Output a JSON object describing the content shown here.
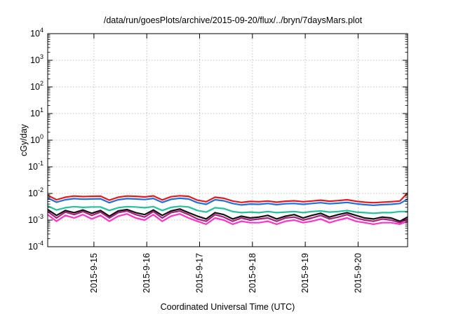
{
  "chart_data": {
    "type": "line",
    "title": "/data/run/goesPlots/archive/2015-09-20/flux/../bryn/7daysMars.plot",
    "xlabel": "Coordinated Universal Time (UTC)",
    "ylabel": "cGy/day",
    "yscale": "log",
    "ylim": [
      0.0001,
      10000
    ],
    "xlim": [
      "2015-09-14 03:00",
      "2015-09-20 22:30"
    ],
    "grid": true,
    "y_ticks": [
      {
        "base": "10",
        "exp": "4"
      },
      {
        "base": "10",
        "exp": "3"
      },
      {
        "base": "10",
        "exp": "2"
      },
      {
        "base": "10",
        "exp": "1"
      },
      {
        "base": "10",
        "exp": "0"
      },
      {
        "base": "10",
        "exp": "-1"
      },
      {
        "base": "10",
        "exp": "-2"
      },
      {
        "base": "10",
        "exp": "-3"
      },
      {
        "base": "10",
        "exp": "-4"
      }
    ],
    "x_ticks": [
      "2015-9-15",
      "2015-9-16",
      "2015-9-17",
      "2015-9-18",
      "2015-9-19",
      "2015-9-20"
    ],
    "x": [
      "2015-09-14 03:00",
      "2015-09-14 07:00",
      "2015-09-14 11:00",
      "2015-09-14 15:00",
      "2015-09-14 19:00",
      "2015-09-14 23:00",
      "2015-09-15 03:00",
      "2015-09-15 07:00",
      "2015-09-15 11:00",
      "2015-09-15 15:00",
      "2015-09-15 19:00",
      "2015-09-15 23:00",
      "2015-09-16 03:00",
      "2015-09-16 07:00",
      "2015-09-16 11:00",
      "2015-09-16 15:00",
      "2015-09-16 19:00",
      "2015-09-16 23:00",
      "2015-09-17 03:00",
      "2015-09-17 07:00",
      "2015-09-17 11:00",
      "2015-09-17 15:00",
      "2015-09-17 19:00",
      "2015-09-17 23:00",
      "2015-09-18 03:00",
      "2015-09-18 07:00",
      "2015-09-18 11:00",
      "2015-09-18 15:00",
      "2015-09-18 19:00",
      "2015-09-18 23:00",
      "2015-09-19 03:00",
      "2015-09-19 07:00",
      "2015-09-19 11:00",
      "2015-09-19 15:00",
      "2015-09-19 19:00",
      "2015-09-19 23:00",
      "2015-09-20 03:00",
      "2015-09-20 07:00",
      "2015-09-20 11:00",
      "2015-09-20 15:00",
      "2015-09-20 19:00",
      "2015-09-20 22:30"
    ],
    "series": [
      {
        "color": "#e41a1c",
        "values": [
          0.0085,
          0.0058,
          0.0072,
          0.008,
          0.0076,
          0.0078,
          0.0079,
          0.0056,
          0.0072,
          0.008,
          0.0078,
          0.0074,
          0.0081,
          0.0057,
          0.0075,
          0.0082,
          0.0078,
          0.0056,
          0.0049,
          0.0072,
          0.0066,
          0.0052,
          0.0046,
          0.005,
          0.0049,
          0.0052,
          0.0047,
          0.0051,
          0.0053,
          0.0049,
          0.0052,
          0.0056,
          0.0051,
          0.0054,
          0.0058,
          0.0051,
          0.0047,
          0.0045,
          0.0047,
          0.0049,
          0.0052,
          0.0105
        ]
      },
      {
        "color": "#1f6fe0",
        "values": [
          0.0068,
          0.0047,
          0.0058,
          0.0064,
          0.0061,
          0.0062,
          0.0063,
          0.0045,
          0.0058,
          0.0064,
          0.0062,
          0.0059,
          0.0065,
          0.0046,
          0.006,
          0.0066,
          0.0062,
          0.0045,
          0.0039,
          0.0058,
          0.0053,
          0.0042,
          0.0037,
          0.004,
          0.0039,
          0.0042,
          0.0038,
          0.0041,
          0.0042,
          0.0039,
          0.0042,
          0.0045,
          0.0041,
          0.0043,
          0.0046,
          0.0041,
          0.0038,
          0.0036,
          0.0038,
          0.0039,
          0.0042,
          0.0061
        ]
      },
      {
        "color": "#1fc49a",
        "values": [
          0.0034,
          0.0024,
          0.0029,
          0.0032,
          0.003,
          0.0031,
          0.0031,
          0.0023,
          0.0029,
          0.0032,
          0.0031,
          0.0029,
          0.0032,
          0.0023,
          0.003,
          0.0033,
          0.0031,
          0.0023,
          0.002,
          0.0029,
          0.0027,
          0.0021,
          0.0019,
          0.002,
          0.0019,
          0.0021,
          0.0019,
          0.002,
          0.0021,
          0.0019,
          0.0021,
          0.0022,
          0.002,
          0.0021,
          0.0023,
          0.002,
          0.0019,
          0.0018,
          0.0019,
          0.0019,
          0.0021,
          0.0021
        ]
      },
      {
        "color": "#111111",
        "values": [
          0.0025,
          0.0015,
          0.0023,
          0.0019,
          0.0024,
          0.0018,
          0.0023,
          0.0014,
          0.0022,
          0.0025,
          0.0019,
          0.0016,
          0.0024,
          0.0015,
          0.0022,
          0.0026,
          0.0019,
          0.0014,
          0.0011,
          0.0019,
          0.0016,
          0.0011,
          0.0014,
          0.0012,
          0.0013,
          0.0015,
          0.0011,
          0.0014,
          0.0016,
          0.0012,
          0.0015,
          0.0018,
          0.0013,
          0.0016,
          0.0019,
          0.0015,
          0.0012,
          0.0011,
          0.0013,
          0.0012,
          0.0009,
          0.0013
        ]
      },
      {
        "color": "#a8207a",
        "values": [
          0.0021,
          0.0012,
          0.002,
          0.0016,
          0.0021,
          0.0015,
          0.002,
          0.0012,
          0.0019,
          0.0022,
          0.0016,
          0.0013,
          0.0021,
          0.0012,
          0.0019,
          0.0022,
          0.0016,
          0.0011,
          0.0009,
          0.0016,
          0.0013,
          0.0009,
          0.0012,
          0.001,
          0.0011,
          0.0012,
          0.0009,
          0.0012,
          0.0013,
          0.001,
          0.0012,
          0.0015,
          0.0011,
          0.0013,
          0.0016,
          0.0012,
          0.001,
          0.0009,
          0.0011,
          0.001,
          0.0008,
          0.0011
        ]
      },
      {
        "color": "#ff33cc",
        "values": [
          0.0016,
          0.0009,
          0.0015,
          0.0012,
          0.0016,
          0.0011,
          0.0015,
          0.0009,
          0.0014,
          0.0017,
          0.0012,
          0.001,
          0.0016,
          0.0009,
          0.0014,
          0.0017,
          0.0012,
          0.0009,
          0.0007,
          0.0012,
          0.001,
          0.0007,
          0.0009,
          0.0008,
          0.0008,
          0.0009,
          0.0007,
          0.0009,
          0.001,
          0.0008,
          0.0009,
          0.0011,
          0.0008,
          0.001,
          0.0012,
          0.0009,
          0.0008,
          0.0007,
          0.0008,
          0.0008,
          0.0007,
          0.0009
        ]
      }
    ]
  }
}
